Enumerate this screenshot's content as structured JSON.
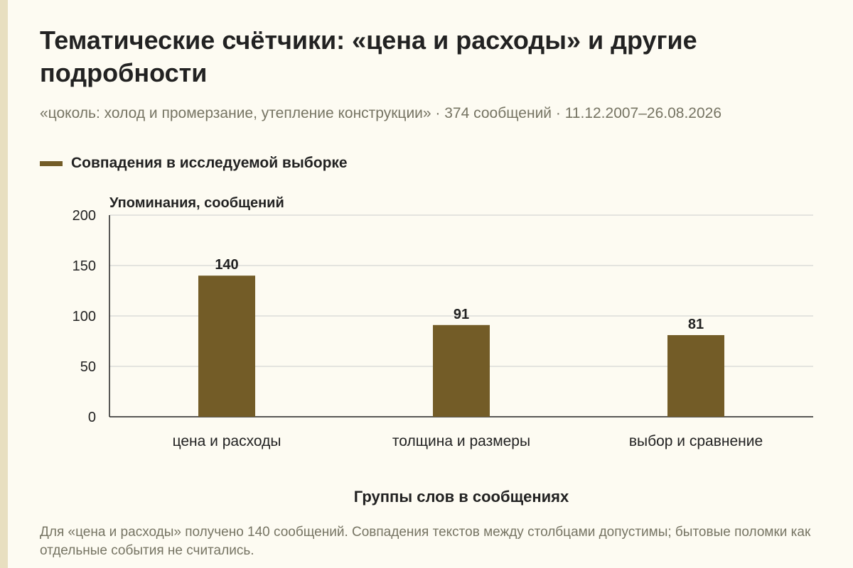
{
  "title": "Тематические счётчики: «цена и расходы» и другие подробности",
  "subtitle": "«цоколь: холод и промерзание, утепление конструкции» · 374 сообщений · 11.12.2007–26.08.2026",
  "legend_label": "Совпадения в исследуемой выборке",
  "footnote": "Для «цена и расходы» получено 140 сообщений. Совпадения текстов между столбцами допустимы; бытовые поломки как отдельные события не считались.",
  "colors": {
    "bar": "#735c27",
    "background": "#fdfbf2",
    "grid": "#cccccc",
    "muted_text": "#767463"
  },
  "chart_data": {
    "type": "bar",
    "categories": [
      "цена и расходы",
      "толщина и размеры",
      "выбор и сравнение"
    ],
    "series": [
      {
        "name": "Совпадения в исследуемой выборке",
        "values": [
          140,
          91,
          81
        ]
      }
    ],
    "ylabel": "Упоминания, сообщений",
    "xlabel": "Группы слов в сообщениях",
    "ylim": [
      0,
      200
    ],
    "yticks": [
      0,
      50,
      100,
      150,
      200
    ],
    "grid": true,
    "legend_position": "top-left"
  }
}
